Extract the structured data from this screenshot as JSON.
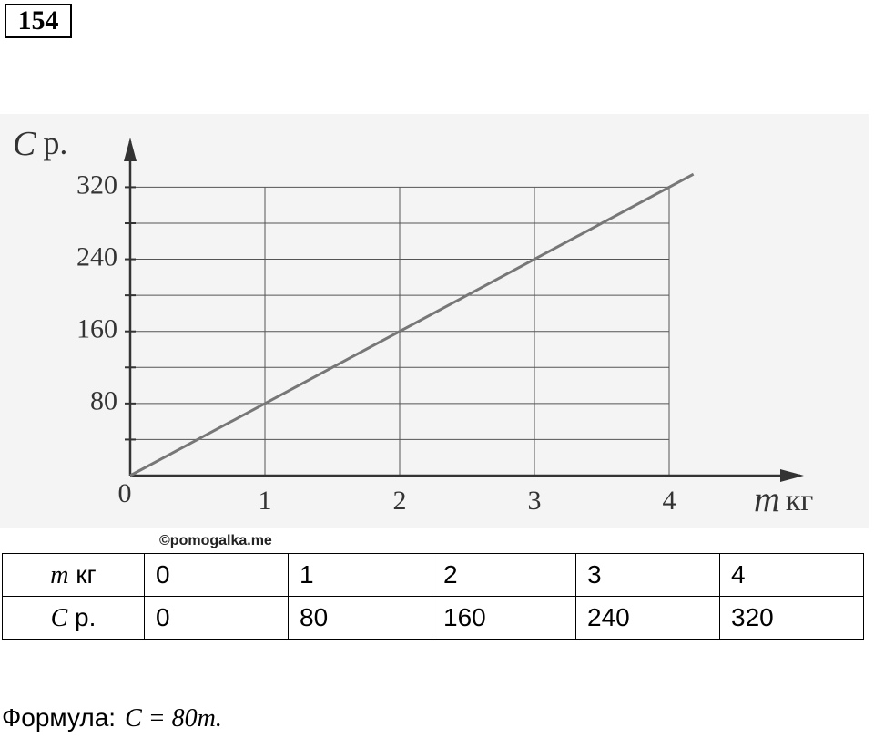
{
  "header": {
    "number": "154"
  },
  "chart_data": {
    "type": "line",
    "ylabel_var": "C",
    "ylabel_unit": "р.",
    "xlabel_var": "m",
    "xlabel_unit": "кг",
    "origin_label": "0",
    "x": [
      0,
      4.18
    ],
    "values": [
      0,
      334.4
    ],
    "color": "#777777",
    "xlim": [
      0,
      5
    ],
    "ylim": [
      0,
      375
    ],
    "xticks": [
      1,
      2,
      3,
      4
    ],
    "yticks": [
      80,
      160,
      240,
      320
    ],
    "minor_yticks": [
      40,
      120,
      200,
      280
    ],
    "grid": true
  },
  "watermark": "©pomogalka.me",
  "table": {
    "rows": [
      {
        "var": "m",
        "unit": "кг",
        "cells": [
          0,
          1,
          2,
          3,
          4
        ]
      },
      {
        "var": "C",
        "unit": "р.",
        "cells": [
          0,
          80,
          160,
          240,
          320
        ]
      }
    ]
  },
  "formula": {
    "label": "Формула:",
    "expression": "C = 80m."
  }
}
